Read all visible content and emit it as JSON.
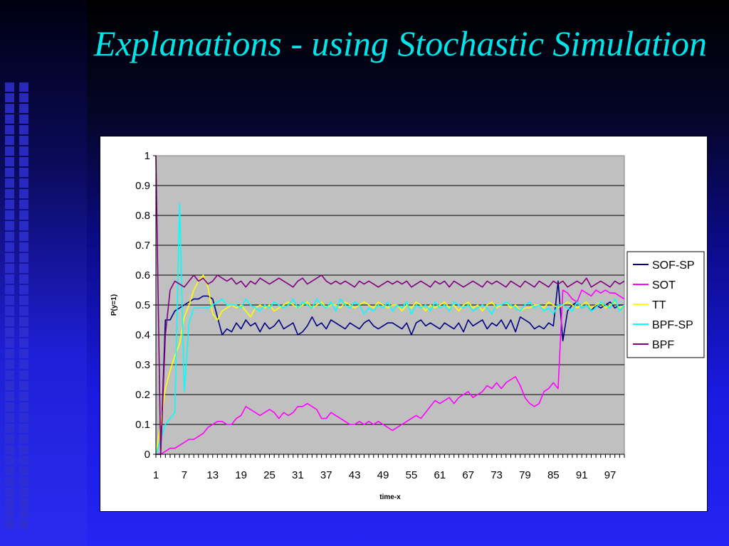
{
  "slide": {
    "title": "Explanations - using Stochastic Simulation"
  },
  "chart_data": {
    "type": "line",
    "title": "",
    "xlabel": "time-x",
    "ylabel": "P(y=1)",
    "ylim": [
      0,
      1
    ],
    "yticks": [
      "0",
      "0.1",
      "0.2",
      "0.3",
      "0.4",
      "0.5",
      "0.6",
      "0.7",
      "0.8",
      "0.9",
      "1"
    ],
    "xticks": [
      "1",
      "7",
      "13",
      "19",
      "25",
      "31",
      "37",
      "43",
      "49",
      "55",
      "61",
      "67",
      "73",
      "79",
      "85",
      "91",
      "97"
    ],
    "x_range": [
      1,
      100
    ],
    "grid": true,
    "legend_position": "right",
    "plot_background": "#c0c0c0",
    "series": [
      {
        "name": "SOF-SP",
        "color": "#000080",
        "values": [
          0,
          0,
          0.45,
          0.45,
          0.48,
          0.49,
          0.5,
          0.51,
          0.52,
          0.52,
          0.53,
          0.53,
          0.52,
          0.46,
          0.4,
          0.42,
          0.41,
          0.44,
          0.42,
          0.45,
          0.43,
          0.44,
          0.41,
          0.44,
          0.42,
          0.43,
          0.45,
          0.42,
          0.43,
          0.44,
          0.4,
          0.41,
          0.43,
          0.46,
          0.43,
          0.44,
          0.42,
          0.45,
          0.44,
          0.43,
          0.42,
          0.44,
          0.43,
          0.42,
          0.44,
          0.45,
          0.43,
          0.42,
          0.43,
          0.44,
          0.44,
          0.43,
          0.42,
          0.44,
          0.4,
          0.44,
          0.45,
          0.43,
          0.44,
          0.43,
          0.42,
          0.44,
          0.43,
          0.42,
          0.44,
          0.41,
          0.45,
          0.43,
          0.44,
          0.45,
          0.42,
          0.44,
          0.43,
          0.45,
          0.42,
          0.45,
          0.41,
          0.46,
          0.45,
          0.44,
          0.42,
          0.43,
          0.42,
          0.44,
          0.43,
          0.58,
          0.38,
          0.48,
          0.5,
          0.51,
          0.49,
          0.5,
          0.48,
          0.5,
          0.49,
          0.5,
          0.51,
          0.49,
          0.5,
          0.5
        ]
      },
      {
        "name": "SOT",
        "color": "#ff00ff",
        "values": [
          0,
          0,
          0.01,
          0.02,
          0.02,
          0.03,
          0.04,
          0.05,
          0.05,
          0.06,
          0.07,
          0.09,
          0.1,
          0.11,
          0.11,
          0.1,
          0.1,
          0.12,
          0.13,
          0.16,
          0.15,
          0.14,
          0.13,
          0.14,
          0.15,
          0.14,
          0.12,
          0.14,
          0.13,
          0.14,
          0.16,
          0.16,
          0.17,
          0.16,
          0.15,
          0.12,
          0.12,
          0.14,
          0.13,
          0.12,
          0.11,
          0.1,
          0.1,
          0.11,
          0.1,
          0.11,
          0.1,
          0.11,
          0.1,
          0.09,
          0.08,
          0.09,
          0.1,
          0.11,
          0.12,
          0.13,
          0.12,
          0.14,
          0.16,
          0.18,
          0.17,
          0.18,
          0.19,
          0.17,
          0.19,
          0.2,
          0.21,
          0.19,
          0.2,
          0.21,
          0.23,
          0.22,
          0.24,
          0.22,
          0.24,
          0.25,
          0.26,
          0.23,
          0.19,
          0.17,
          0.16,
          0.17,
          0.21,
          0.22,
          0.24,
          0.22,
          0.55,
          0.54,
          0.52,
          0.51,
          0.55,
          0.54,
          0.53,
          0.55,
          0.54,
          0.55,
          0.54,
          0.54,
          0.53,
          0.52
        ]
      },
      {
        "name": "TT",
        "color": "#ffff00",
        "values": [
          0,
          0.1,
          0.22,
          0.28,
          0.33,
          0.37,
          0.46,
          0.5,
          0.55,
          0.58,
          0.6,
          0.56,
          0.47,
          0.45,
          0.48,
          0.49,
          0.5,
          0.49,
          0.5,
          0.48,
          0.46,
          0.49,
          0.5,
          0.49,
          0.5,
          0.48,
          0.49,
          0.5,
          0.51,
          0.5,
          0.49,
          0.5,
          0.51,
          0.49,
          0.5,
          0.51,
          0.49,
          0.5,
          0.5,
          0.49,
          0.51,
          0.5,
          0.49,
          0.5,
          0.51,
          0.5,
          0.49,
          0.51,
          0.5,
          0.49,
          0.5,
          0.5,
          0.48,
          0.5,
          0.49,
          0.51,
          0.5,
          0.48,
          0.5,
          0.49,
          0.5,
          0.51,
          0.49,
          0.5,
          0.48,
          0.5,
          0.51,
          0.49,
          0.5,
          0.48,
          0.5,
          0.51,
          0.49,
          0.5,
          0.51,
          0.49,
          0.5,
          0.48,
          0.49,
          0.49,
          0.5,
          0.5,
          0.49,
          0.51,
          0.5,
          0.49,
          0.5,
          0.51,
          0.5,
          0.49,
          0.5,
          0.51,
          0.49,
          0.5,
          0.51,
          0.49,
          0.5,
          0.51,
          0.49,
          0.5
        ]
      },
      {
        "name": "BPF-SP",
        "color": "#00ffff",
        "values": [
          0,
          0.05,
          0.1,
          0.12,
          0.14,
          0.84,
          0.21,
          0.44,
          0.49,
          0.49,
          0.49,
          0.49,
          0.5,
          0.51,
          0.52,
          0.5,
          0.5,
          0.5,
          0.49,
          0.52,
          0.5,
          0.49,
          0.48,
          0.5,
          0.49,
          0.51,
          0.5,
          0.49,
          0.5,
          0.52,
          0.49,
          0.51,
          0.5,
          0.49,
          0.52,
          0.5,
          0.49,
          0.51,
          0.48,
          0.52,
          0.5,
          0.49,
          0.51,
          0.5,
          0.47,
          0.49,
          0.48,
          0.5,
          0.49,
          0.51,
          0.48,
          0.5,
          0.49,
          0.51,
          0.47,
          0.5,
          0.49,
          0.5,
          0.48,
          0.51,
          0.49,
          0.5,
          0.48,
          0.51,
          0.5,
          0.49,
          0.5,
          0.48,
          0.49,
          0.5,
          0.49,
          0.47,
          0.5,
          0.5,
          0.51,
          0.5,
          0.49,
          0.48,
          0.5,
          0.51,
          0.49,
          0.5,
          0.48,
          0.49,
          0.47,
          0.5,
          0.5,
          0.49,
          0.48,
          0.51,
          0.49,
          0.5,
          0.48,
          0.49,
          0.51,
          0.5,
          0.49,
          0.52,
          0.48,
          0.5
        ]
      },
      {
        "name": "BPF",
        "color": "#800080",
        "values": [
          1.0,
          0,
          0.4,
          0.55,
          0.58,
          0.57,
          0.56,
          0.58,
          0.6,
          0.58,
          0.59,
          0.57,
          0.58,
          0.6,
          0.59,
          0.58,
          0.59,
          0.57,
          0.58,
          0.56,
          0.58,
          0.57,
          0.59,
          0.58,
          0.57,
          0.58,
          0.59,
          0.58,
          0.57,
          0.56,
          0.58,
          0.59,
          0.57,
          0.58,
          0.59,
          0.6,
          0.58,
          0.57,
          0.58,
          0.57,
          0.58,
          0.57,
          0.56,
          0.58,
          0.57,
          0.58,
          0.57,
          0.56,
          0.57,
          0.58,
          0.57,
          0.58,
          0.57,
          0.58,
          0.56,
          0.57,
          0.58,
          0.57,
          0.56,
          0.58,
          0.57,
          0.58,
          0.56,
          0.58,
          0.57,
          0.56,
          0.57,
          0.58,
          0.57,
          0.56,
          0.58,
          0.57,
          0.58,
          0.57,
          0.56,
          0.58,
          0.57,
          0.56,
          0.58,
          0.57,
          0.56,
          0.58,
          0.57,
          0.56,
          0.58,
          0.57,
          0.58,
          0.56,
          0.57,
          0.58,
          0.57,
          0.59,
          0.56,
          0.57,
          0.58,
          0.57,
          0.56,
          0.58,
          0.57,
          0.58
        ]
      }
    ]
  }
}
